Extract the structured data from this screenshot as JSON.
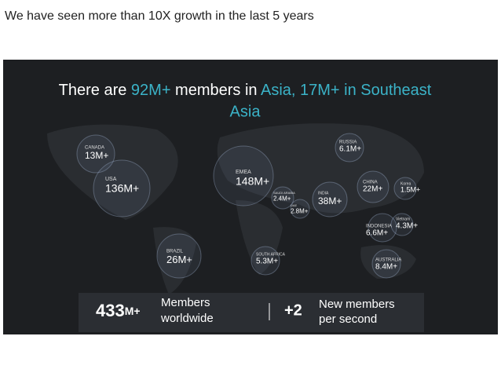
{
  "header": {
    "title": "We have seen more than 10X growth in the last 5 years"
  },
  "slide": {
    "headline": [
      "There are ",
      "92M+",
      " members in ",
      "Asia, 17M+ in Southeast",
      "Asia"
    ],
    "regions": [
      {
        "name": "CANADA",
        "value": "13M+"
      },
      {
        "name": "USA",
        "value": "136M+"
      },
      {
        "name": "EMEA",
        "value": "148M+"
      },
      {
        "name": "SAUDI ARABIA",
        "value": "2.4M+"
      },
      {
        "name": "UAE",
        "value": "2.8M+"
      },
      {
        "name": "INDIA",
        "value": "38M+"
      },
      {
        "name": "RUSSIA",
        "value": "6.1M+"
      },
      {
        "name": "CHINA",
        "value": "22M+"
      },
      {
        "name": "Korea",
        "value": "1.5M+"
      },
      {
        "name": "Vietnam",
        "value": "4.3M+"
      },
      {
        "name": "INDONESIA",
        "value": "6.6M+"
      },
      {
        "name": "BRAZIL",
        "value": "26M+"
      },
      {
        "name": "SOUTH AFRICA",
        "value": "5.3M+"
      },
      {
        "name": "AUSTRALIA",
        "value": "8.4M+"
      }
    ],
    "footer": {
      "members_number": "433",
      "members_unit": "M+",
      "members_label": [
        "Members",
        "worldwide"
      ],
      "rate": "+2",
      "rate_label": [
        "New members",
        "per second"
      ]
    }
  }
}
